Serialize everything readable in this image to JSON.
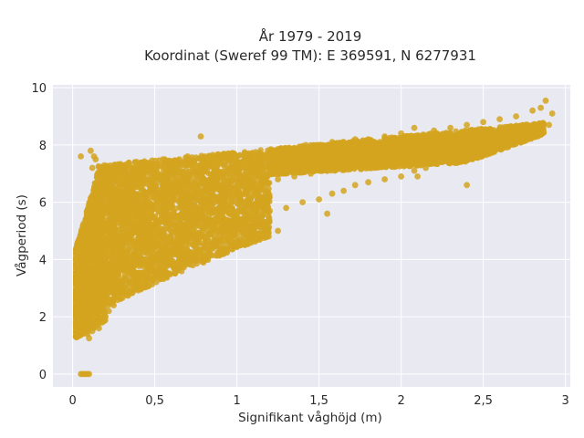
{
  "chart_data": {
    "type": "scatter",
    "title_line1": "År 1979 - 2019",
    "title_line2": "Koordinat (Sweref 99 TM): E 369591, N 6277931",
    "xlabel": "Signifikant våghöjd (m)",
    "ylabel": "Vågperiod (s)",
    "xlim": [
      -0.12,
      3.03
    ],
    "ylim": [
      -0.45,
      10.1
    ],
    "x_ticks": [
      0,
      0.5,
      1,
      1.5,
      2,
      2.5,
      3
    ],
    "x_tick_labels": [
      "0",
      "0,5",
      "1",
      "1,5",
      "2",
      "2,5",
      "3"
    ],
    "y_ticks": [
      0,
      2,
      4,
      6,
      8,
      10
    ],
    "y_tick_labels": [
      "0",
      "2",
      "4",
      "6",
      "8",
      "10"
    ],
    "grid": true,
    "background": "#e9e9f1",
    "marker_color": "#d4a520",
    "points": [
      [
        0.05,
        0.0
      ],
      [
        0.06,
        0.0
      ],
      [
        0.07,
        0.0
      ],
      [
        0.08,
        0.0
      ],
      [
        0.09,
        0.0
      ],
      [
        0.1,
        0.0
      ],
      [
        0.02,
        1.3
      ],
      [
        0.02,
        1.8
      ],
      [
        0.03,
        2.4
      ],
      [
        0.03,
        3.0
      ],
      [
        0.04,
        3.6
      ],
      [
        0.05,
        4.1
      ],
      [
        0.06,
        4.5
      ],
      [
        0.07,
        3.9
      ],
      [
        0.08,
        2.2
      ],
      [
        0.09,
        1.4
      ],
      [
        0.1,
        1.25
      ],
      [
        0.12,
        1.5
      ],
      [
        0.1,
        5.2
      ],
      [
        0.12,
        5.8
      ],
      [
        0.13,
        6.4
      ],
      [
        0.12,
        7.2
      ],
      [
        0.13,
        7.6
      ],
      [
        0.14,
        7.5
      ],
      [
        0.15,
        6.9
      ],
      [
        0.16,
        1.6
      ],
      [
        0.18,
        1.8
      ],
      [
        0.2,
        2.0
      ],
      [
        0.22,
        2.2
      ],
      [
        0.25,
        2.4
      ],
      [
        0.18,
        6.9
      ],
      [
        0.2,
        7.1
      ],
      [
        0.22,
        7.0
      ],
      [
        0.25,
        7.2
      ],
      [
        0.28,
        7.3
      ],
      [
        0.3,
        7.1
      ],
      [
        0.28,
        2.7
      ],
      [
        0.32,
        3.0
      ],
      [
        0.36,
        3.2
      ],
      [
        0.4,
        3.5
      ],
      [
        0.45,
        3.8
      ],
      [
        0.5,
        4.0
      ],
      [
        0.33,
        7.3
      ],
      [
        0.38,
        7.4
      ],
      [
        0.42,
        7.2
      ],
      [
        0.5,
        7.3
      ],
      [
        0.55,
        7.5
      ],
      [
        0.6,
        7.3
      ],
      [
        0.56,
        4.1
      ],
      [
        0.62,
        4.2
      ],
      [
        0.68,
        4.3
      ],
      [
        0.75,
        4.5
      ],
      [
        0.82,
        4.8
      ],
      [
        0.9,
        5.0
      ],
      [
        0.65,
        7.5
      ],
      [
        0.7,
        7.6
      ],
      [
        0.75,
        7.3
      ],
      [
        0.8,
        7.5
      ],
      [
        0.85,
        7.6
      ],
      [
        0.9,
        7.4
      ],
      [
        0.98,
        5.2
      ],
      [
        1.05,
        5.3
      ],
      [
        1.12,
        5.5
      ],
      [
        1.2,
        5.7
      ],
      [
        1.3,
        5.8
      ],
      [
        1.4,
        6.0
      ],
      [
        0.95,
        7.5
      ],
      [
        1.0,
        7.6
      ],
      [
        1.05,
        7.7
      ],
      [
        1.12,
        7.6
      ],
      [
        1.2,
        7.7
      ],
      [
        1.3,
        7.8
      ],
      [
        1.5,
        6.1
      ],
      [
        1.58,
        6.3
      ],
      [
        1.65,
        6.4
      ],
      [
        1.72,
        6.6
      ],
      [
        1.8,
        6.7
      ],
      [
        1.9,
        6.8
      ],
      [
        1.35,
        7.9
      ],
      [
        1.42,
        8.0
      ],
      [
        1.5,
        8.0
      ],
      [
        1.58,
        8.1
      ],
      [
        1.65,
        8.1
      ],
      [
        1.72,
        8.2
      ],
      [
        2.0,
        6.9
      ],
      [
        2.08,
        7.1
      ],
      [
        2.15,
        7.2
      ],
      [
        2.25,
        7.4
      ],
      [
        2.35,
        7.5
      ],
      [
        2.45,
        7.7
      ],
      [
        1.8,
        8.2
      ],
      [
        1.9,
        8.3
      ],
      [
        2.0,
        8.4
      ],
      [
        2.08,
        8.6
      ],
      [
        2.2,
        8.5
      ],
      [
        2.3,
        8.6
      ],
      [
        2.55,
        7.8
      ],
      [
        2.62,
        8.0
      ],
      [
        2.7,
        8.2
      ],
      [
        2.78,
        8.4
      ],
      [
        2.85,
        8.6
      ],
      [
        2.9,
        8.7
      ],
      [
        2.4,
        8.7
      ],
      [
        2.5,
        8.8
      ],
      [
        2.6,
        8.9
      ],
      [
        2.7,
        9.0
      ],
      [
        2.8,
        9.2
      ],
      [
        2.88,
        9.55
      ],
      [
        2.92,
        9.1
      ],
      [
        2.85,
        9.3
      ],
      [
        2.6,
        8.5
      ],
      [
        0.05,
        7.6
      ],
      [
        0.11,
        7.8
      ],
      [
        0.78,
        8.3
      ],
      [
        0.25,
        4.8
      ],
      [
        0.3,
        5.5
      ],
      [
        0.35,
        5.1
      ],
      [
        0.4,
        5.9
      ],
      [
        0.45,
        5.4
      ],
      [
        0.5,
        6.2
      ],
      [
        0.55,
        5.7
      ],
      [
        0.6,
        6.4
      ],
      [
        0.65,
        6.0
      ],
      [
        0.7,
        6.6
      ],
      [
        0.75,
        6.2
      ],
      [
        0.8,
        6.8
      ],
      [
        0.85,
        6.4
      ],
      [
        0.9,
        6.9
      ],
      [
        0.95,
        6.5
      ],
      [
        1.0,
        7.0
      ],
      [
        1.05,
        6.6
      ],
      [
        1.1,
        7.1
      ],
      [
        1.15,
        6.7
      ],
      [
        1.2,
        7.2
      ],
      [
        1.25,
        6.8
      ],
      [
        1.3,
        7.3
      ],
      [
        1.35,
        6.9
      ],
      [
        1.4,
        7.4
      ],
      [
        1.45,
        7.0
      ],
      [
        1.5,
        7.5
      ],
      [
        1.55,
        7.1
      ],
      [
        1.6,
        7.6
      ],
      [
        1.65,
        7.2
      ],
      [
        1.7,
        7.7
      ],
      [
        1.75,
        7.3
      ],
      [
        1.8,
        7.8
      ],
      [
        1.85,
        7.4
      ],
      [
        1.9,
        7.9
      ],
      [
        1.95,
        7.5
      ],
      [
        2.0,
        8.0
      ],
      [
        0.15,
        2.5
      ],
      [
        0.18,
        3.2
      ],
      [
        0.2,
        4.0
      ],
      [
        0.22,
        4.6
      ],
      [
        0.24,
        5.3
      ],
      [
        0.26,
        6.0
      ],
      [
        0.3,
        4.2
      ],
      [
        0.34,
        4.7
      ],
      [
        0.38,
        5.3
      ],
      [
        0.42,
        4.5
      ],
      [
        0.46,
        5.0
      ],
      [
        0.52,
        5.1
      ],
      [
        1.55,
        5.6
      ],
      [
        2.4,
        6.6
      ],
      [
        2.1,
        6.9
      ],
      [
        1.25,
        5.0
      ],
      [
        0.38,
        6.7
      ],
      [
        0.2,
        6.4
      ]
    ]
  }
}
